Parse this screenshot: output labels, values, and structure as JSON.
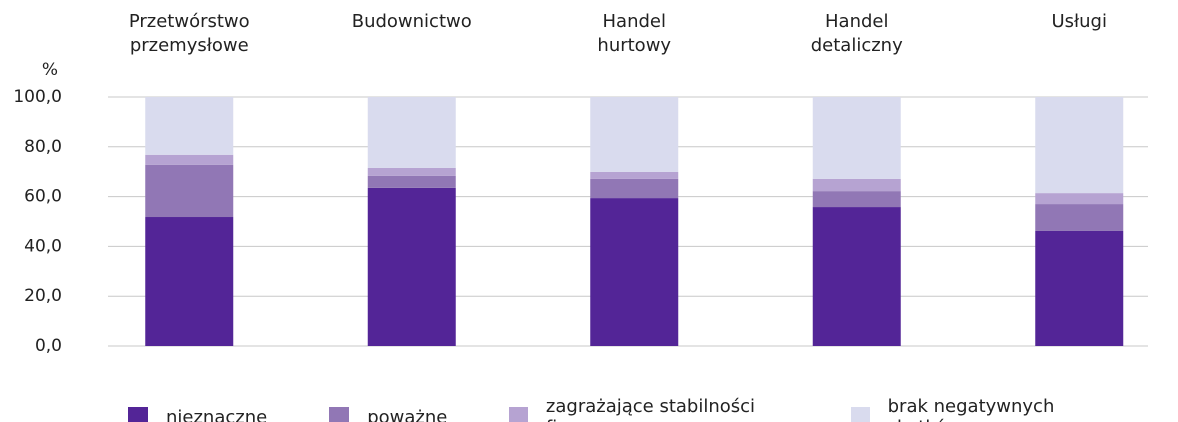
{
  "chart_data": {
    "type": "stacked_bar",
    "y_label": "%",
    "categories": [
      "Przetwórstwo\nprzemysłowe",
      "Budownictwo",
      "Handel\nhurtowy",
      "Handel\ndetaliczny",
      "Usługi"
    ],
    "series": [
      {
        "name": "nieznaczne",
        "color": "#532597",
        "values": [
          51.8,
          63.5,
          59.4,
          55.8,
          46.2
        ]
      },
      {
        "name": "poważne",
        "color": "#9177b5",
        "values": [
          21.0,
          4.8,
          7.7,
          6.4,
          10.8
        ]
      },
      {
        "name": "zagrażające stabilności firmy",
        "color": "#b6a3d2",
        "values": [
          4.0,
          3.2,
          2.8,
          4.9,
          4.4
        ]
      },
      {
        "name": "brak negatywnych skutków",
        "color": "#d9dbee",
        "values": [
          23.2,
          28.5,
          30.1,
          32.9,
          38.6
        ]
      }
    ],
    "ylim": [
      0,
      100
    ],
    "yticks": [
      {
        "value": 0,
        "label": "0,0"
      },
      {
        "value": 20,
        "label": "20,0"
      },
      {
        "value": 40,
        "label": "40,0"
      },
      {
        "value": 60,
        "label": "60,0"
      },
      {
        "value": 80,
        "label": "80,0"
      },
      {
        "value": 100,
        "label": "100,0"
      }
    ],
    "grid": true
  }
}
